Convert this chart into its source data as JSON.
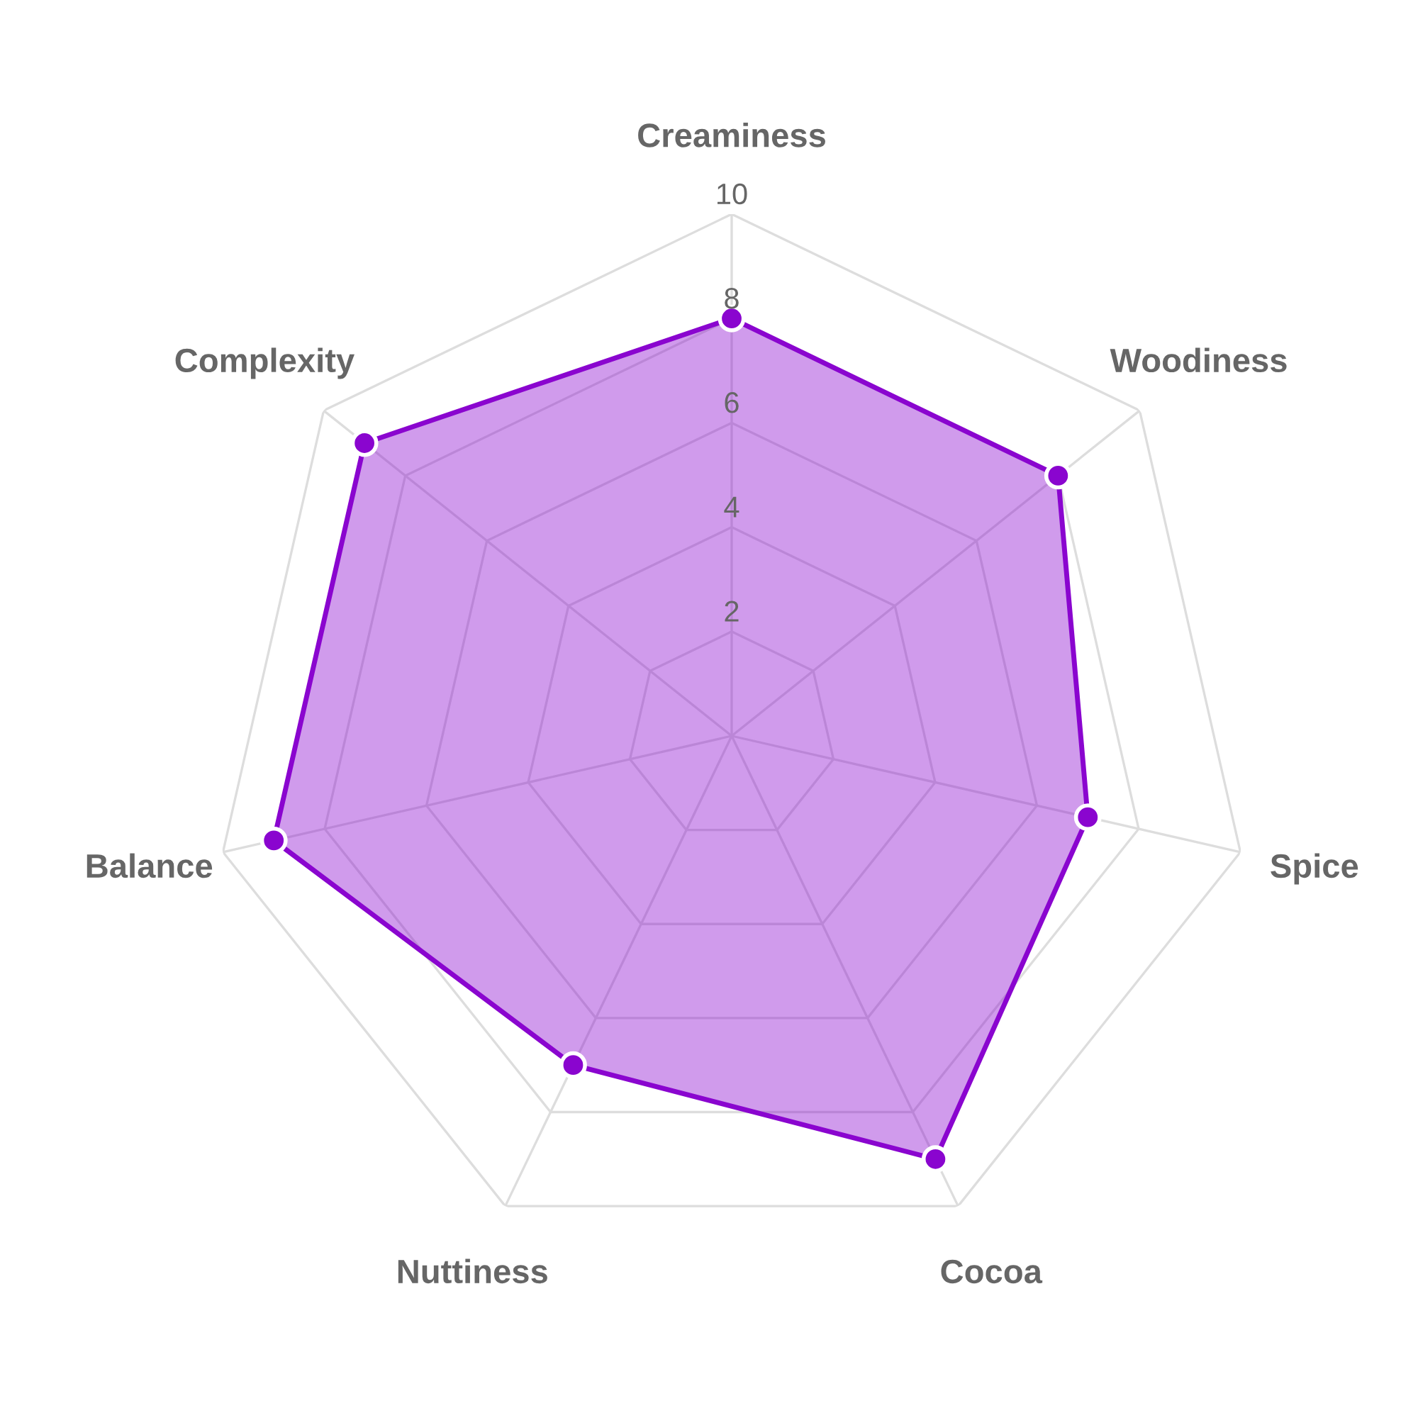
{
  "chart_data": {
    "type": "radar",
    "categories": [
      "Creaminess",
      "Woodiness",
      "Spice",
      "Cocoa",
      "Nuttiness",
      "Balance",
      "Complexity"
    ],
    "series": [
      {
        "color": "#8a05cf",
        "values": [
          8,
          8,
          7,
          9,
          7,
          9,
          9
        ]
      }
    ],
    "ylim": [
      0,
      10
    ],
    "yticks": [
      2,
      4,
      6,
      8,
      10
    ],
    "marker": "circle",
    "grid": true
  }
}
